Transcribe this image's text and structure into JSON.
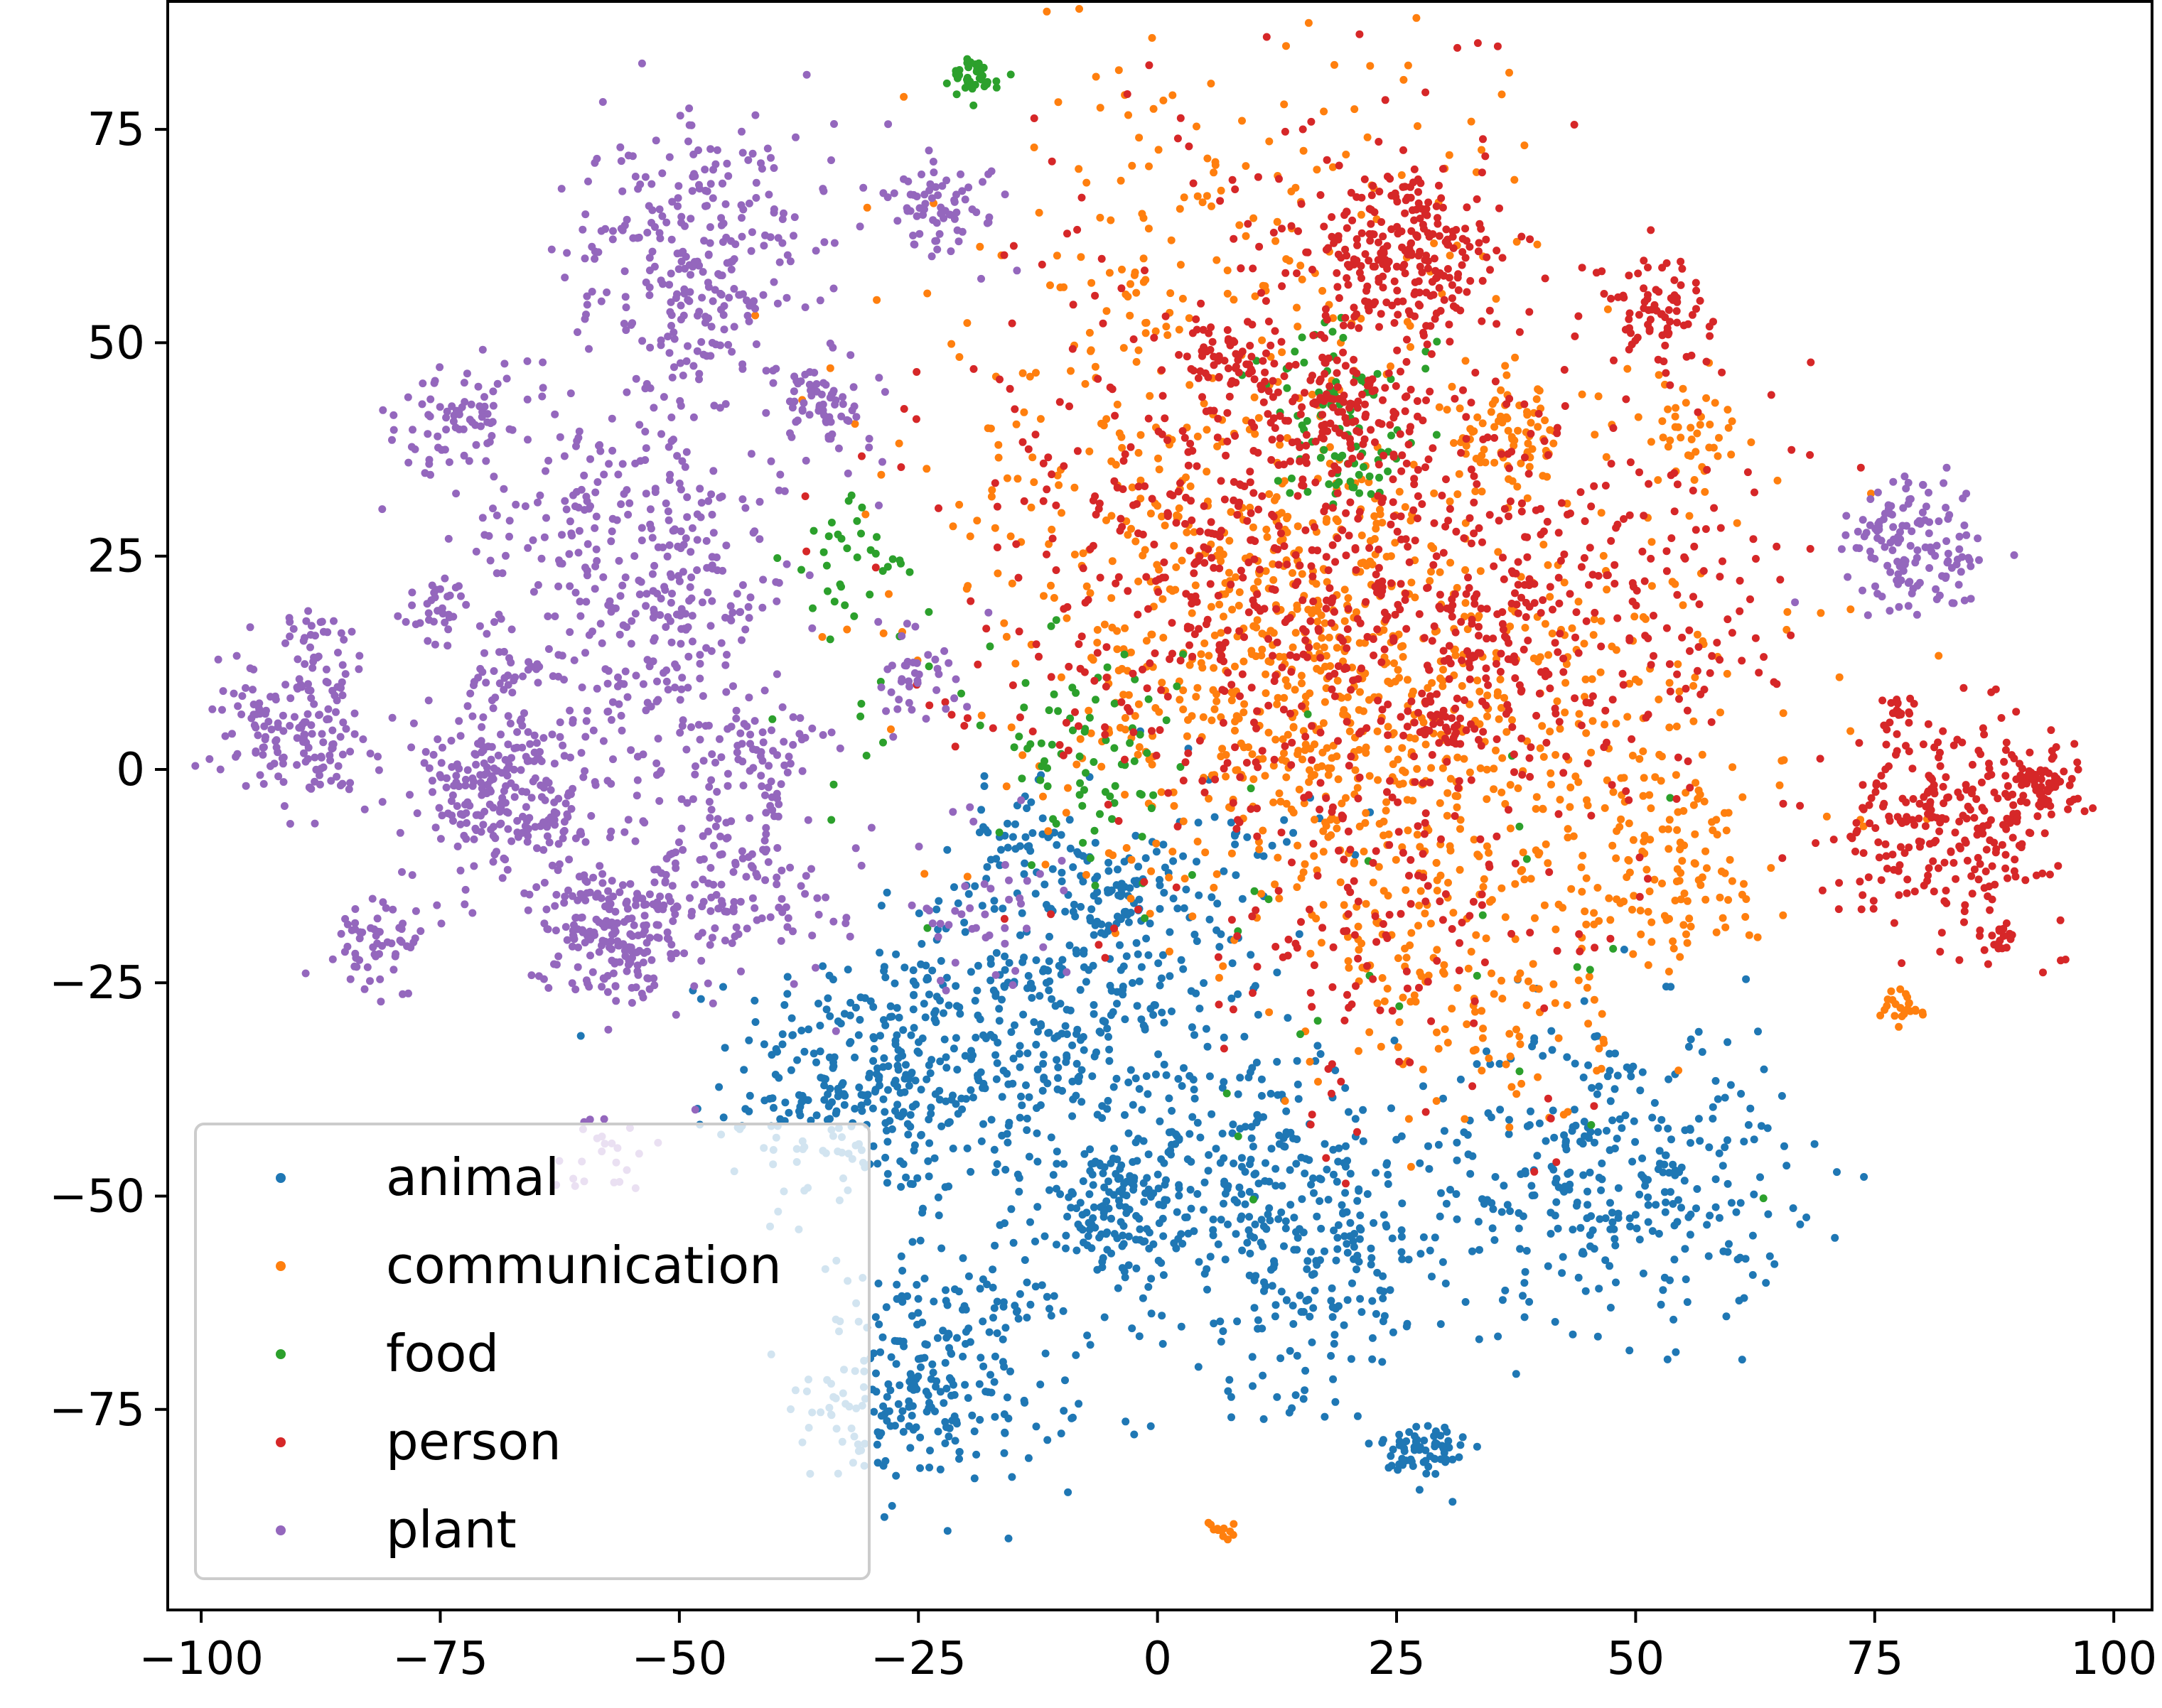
{
  "chart_data": {
    "type": "scatter",
    "title": "",
    "xlabel": "",
    "ylabel": "",
    "xlim": [
      -103.5,
      104
    ],
    "ylim": [
      -98.5,
      90
    ],
    "xticks": [
      -100,
      -75,
      -50,
      -25,
      0,
      25,
      50,
      75,
      100
    ],
    "yticks": [
      -75,
      -50,
      -25,
      0,
      25,
      50,
      75
    ],
    "xtick_labels": [
      "−100",
      "−75",
      "−50",
      "−25",
      "0",
      "25",
      "50",
      "75",
      "100"
    ],
    "ytick_labels": [
      "−75",
      "−50",
      "−25",
      "0",
      "25",
      "50",
      "75"
    ],
    "grid": false,
    "legend_position": "lower-left",
    "series": [
      {
        "name": "animal",
        "color": "#1f77b4",
        "clusters": [
          {
            "x": -28,
            "y": -35,
            "r": 8,
            "n": 260
          },
          {
            "x": -33,
            "y": -40,
            "r": 6,
            "n": 80
          },
          {
            "x": -22,
            "y": -70,
            "r": 7,
            "n": 220
          },
          {
            "x": -28,
            "y": -75,
            "r": 4,
            "n": 60
          },
          {
            "x": -5,
            "y": -52,
            "r": 4,
            "n": 130
          },
          {
            "x": -15,
            "y": -8,
            "r": 3,
            "n": 45
          },
          {
            "x": -5,
            "y": -15,
            "r": 3,
            "n": 40
          },
          {
            "x": -10,
            "y": -25,
            "r": 8,
            "n": 160
          },
          {
            "x": -3,
            "y": -30,
            "r": 10,
            "n": 120
          },
          {
            "x": 15,
            "y": -55,
            "r": 9,
            "n": 300
          },
          {
            "x": 10,
            "y": -45,
            "r": 6,
            "n": 80
          },
          {
            "x": 48,
            "y": -47,
            "r": 9,
            "n": 330
          },
          {
            "x": 28,
            "y": -80,
            "r": 2.2,
            "n": 70
          },
          {
            "x": 5,
            "y": -12,
            "r": 6,
            "n": 60
          },
          {
            "x": -12,
            "y": -40,
            "r": 8,
            "n": 70
          }
        ]
      },
      {
        "name": "communication",
        "color": "#ff7f0e",
        "clusters": [
          {
            "x": 15,
            "y": 10,
            "r": 13,
            "n": 520
          },
          {
            "x": 30,
            "y": -10,
            "r": 13,
            "n": 240
          },
          {
            "x": 0,
            "y": 30,
            "r": 14,
            "n": 240
          },
          {
            "x": 37,
            "y": 39,
            "r": 3,
            "n": 70
          },
          {
            "x": 55,
            "y": 40,
            "r": 3,
            "n": 45
          },
          {
            "x": 52,
            "y": -8,
            "r": 5,
            "n": 60
          },
          {
            "x": 55,
            "y": -15,
            "r": 4,
            "n": 45
          },
          {
            "x": 10,
            "y": 60,
            "r": 16,
            "n": 180
          },
          {
            "x": 45,
            "y": 10,
            "r": 14,
            "n": 160
          },
          {
            "x": 78,
            "y": -28,
            "r": 1.2,
            "n": 25
          },
          {
            "x": 7,
            "y": -89,
            "r": 0.8,
            "n": 12
          },
          {
            "x": 35,
            "y": -30,
            "r": 6,
            "n": 60
          }
        ]
      },
      {
        "name": "food",
        "color": "#2ca02c",
        "clusters": [
          {
            "x": -19,
            "y": 81,
            "r": 1.2,
            "n": 40
          },
          {
            "x": 19,
            "y": 42,
            "r": 5,
            "n": 70
          },
          {
            "x": 21,
            "y": 35,
            "r": 2,
            "n": 20
          },
          {
            "x": -8,
            "y": 3,
            "r": 5,
            "n": 50
          },
          {
            "x": -33,
            "y": 25,
            "r": 3,
            "n": 30
          },
          {
            "x": -5,
            "y": -5,
            "r": 5,
            "n": 25
          },
          {
            "x": 25,
            "y": -30,
            "r": 15,
            "n": 25
          },
          {
            "x": -30,
            "y": 10,
            "r": 10,
            "n": 20
          }
        ]
      },
      {
        "name": "person",
        "color": "#d62728",
        "clusters": [
          {
            "x": 26,
            "y": 60,
            "r": 5,
            "n": 230
          },
          {
            "x": 52,
            "y": 54,
            "r": 3,
            "n": 80
          },
          {
            "x": 83,
            "y": -6,
            "r": 6,
            "n": 260
          },
          {
            "x": 92,
            "y": -2,
            "r": 2,
            "n": 70
          },
          {
            "x": 88,
            "y": -20,
            "r": 1,
            "n": 20
          },
          {
            "x": 78,
            "y": 7,
            "r": 1,
            "n": 20
          },
          {
            "x": 8,
            "y": 48,
            "r": 2.5,
            "n": 50
          },
          {
            "x": 18,
            "y": 42,
            "r": 4,
            "n": 100
          },
          {
            "x": 30,
            "y": 22,
            "r": 14,
            "n": 400
          },
          {
            "x": 5,
            "y": 25,
            "r": 15,
            "n": 380
          },
          {
            "x": 25,
            "y": -15,
            "r": 14,
            "n": 180
          },
          {
            "x": 15,
            "y": 60,
            "r": 14,
            "n": 100
          },
          {
            "x": 50,
            "y": 20,
            "r": 10,
            "n": 100
          },
          {
            "x": 31,
            "y": 5,
            "r": 2,
            "n": 40
          }
        ]
      },
      {
        "name": "plant",
        "color": "#9467bd",
        "clusters": [
          {
            "x": -68,
            "y": -3,
            "r": 5,
            "n": 260
          },
          {
            "x": -57,
            "y": -19,
            "r": 4,
            "n": 200
          },
          {
            "x": -90,
            "y": 4,
            "r": 4,
            "n": 160
          },
          {
            "x": -48,
            "y": 62,
            "r": 7,
            "n": 230
          },
          {
            "x": -55,
            "y": 30,
            "r": 8,
            "n": 240
          },
          {
            "x": -45,
            "y": -12,
            "r": 6,
            "n": 160
          },
          {
            "x": -73,
            "y": 41,
            "r": 3,
            "n": 70
          },
          {
            "x": -35,
            "y": 43,
            "r": 3,
            "n": 65
          },
          {
            "x": -22,
            "y": 66,
            "r": 3,
            "n": 70
          },
          {
            "x": 79,
            "y": 26,
            "r": 4,
            "n": 140
          },
          {
            "x": -81,
            "y": -20,
            "r": 2.5,
            "n": 60
          },
          {
            "x": -75,
            "y": 18,
            "r": 2,
            "n": 35
          },
          {
            "x": -55,
            "y": 10,
            "r": 6,
            "n": 90
          },
          {
            "x": -42,
            "y": 2,
            "r": 4,
            "n": 70
          },
          {
            "x": -88,
            "y": 15,
            "r": 2,
            "n": 30
          },
          {
            "x": -68,
            "y": 11,
            "r": 2,
            "n": 30
          },
          {
            "x": -50,
            "y": 18,
            "r": 4,
            "n": 50
          },
          {
            "x": -48,
            "y": 50,
            "r": 4,
            "n": 60
          },
          {
            "x": -26,
            "y": 11,
            "r": 3,
            "n": 40
          },
          {
            "x": -18,
            "y": -16,
            "r": 5,
            "n": 45
          },
          {
            "x": -58,
            "y": -45,
            "r": 3,
            "n": 25
          }
        ]
      }
    ]
  }
}
